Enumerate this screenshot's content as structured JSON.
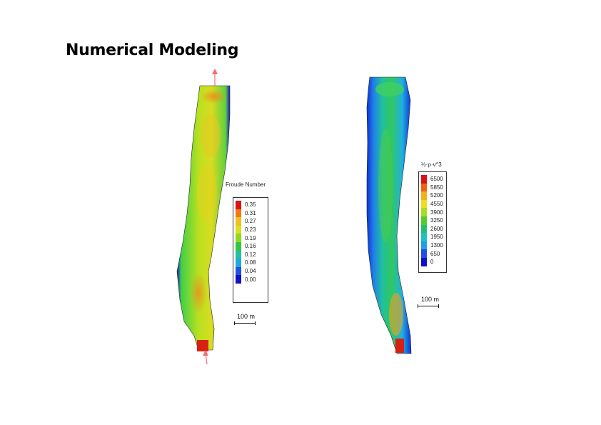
{
  "title": "Numerical Modeling",
  "left_panel": {
    "legend_title": "Froude Number",
    "legend_values": [
      "0.35",
      "0.31",
      "0.27",
      "0.23",
      "0.19",
      "0.16",
      "0.12",
      "0.08",
      "0.04",
      "0.00"
    ],
    "legend_colors": [
      "#e01010",
      "#f07a10",
      "#f0c020",
      "#d8e020",
      "#90d820",
      "#30c840",
      "#20c0a0",
      "#20a8e0",
      "#2050e0",
      "#1010c8"
    ],
    "scale_label": "100 m"
  },
  "right_panel": {
    "legend_title": "½·ρ·v^3",
    "legend_values": [
      "6500",
      "5850",
      "5200",
      "4550",
      "3900",
      "3250",
      "2600",
      "1950",
      "1300",
      "650",
      "0"
    ],
    "legend_colors": [
      "#e01010",
      "#f06010",
      "#f0b020",
      "#e8e020",
      "#a8dc20",
      "#50cc30",
      "#20c070",
      "#20c0c0",
      "#20a0e8",
      "#2050e0",
      "#1010c8"
    ],
    "scale_label": "100 m"
  }
}
